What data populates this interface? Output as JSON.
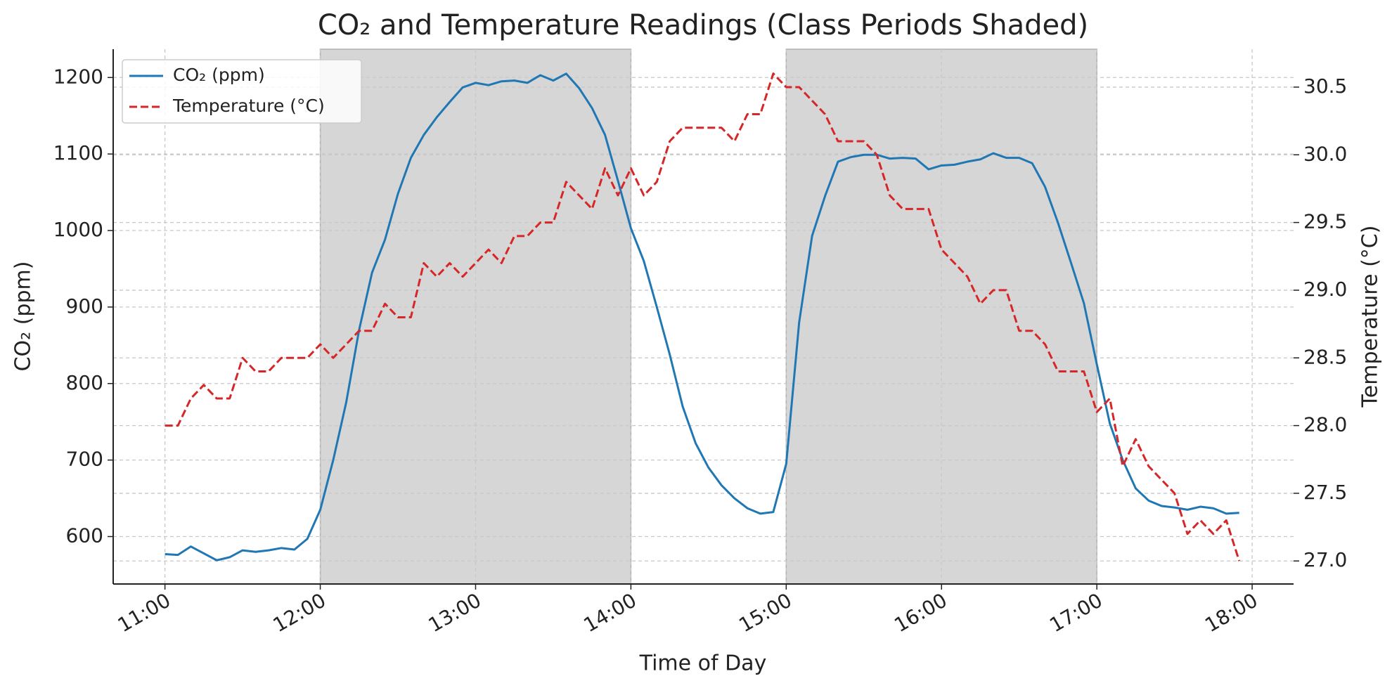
{
  "chart_data": {
    "type": "line",
    "title": "CO₂ and Temperature Readings (Class Periods Shaded)",
    "x_label": "Time of Day",
    "y_label": "CO₂ (ppm)",
    "y2_label": "Temperature (°C)",
    "x": [
      "11:00",
      "11:05",
      "11:10",
      "11:15",
      "11:20",
      "11:25",
      "11:30",
      "11:35",
      "11:40",
      "11:45",
      "11:50",
      "11:55",
      "12:00",
      "12:05",
      "12:10",
      "12:15",
      "12:20",
      "12:25",
      "12:30",
      "12:35",
      "12:40",
      "12:45",
      "12:50",
      "12:55",
      "13:00",
      "13:05",
      "13:10",
      "13:15",
      "13:20",
      "13:25",
      "13:30",
      "13:35",
      "13:40",
      "13:45",
      "13:50",
      "13:55",
      "14:00",
      "14:05",
      "14:10",
      "14:15",
      "14:20",
      "14:25",
      "14:30",
      "14:35",
      "14:40",
      "14:45",
      "14:50",
      "14:55",
      "15:00",
      "15:05",
      "15:10",
      "15:15",
      "15:20",
      "15:25",
      "15:30",
      "15:35",
      "15:40",
      "15:45",
      "15:50",
      "15:55",
      "16:00",
      "16:05",
      "16:10",
      "16:15",
      "16:20",
      "16:25",
      "16:30",
      "16:35",
      "16:40",
      "16:45",
      "16:50",
      "16:55",
      "17:00",
      "17:05",
      "17:10",
      "17:15",
      "17:20",
      "17:25",
      "17:30",
      "17:35",
      "17:40",
      "17:45",
      "17:50",
      "17:55"
    ],
    "series": [
      {
        "name": "CO₂ (ppm)",
        "color": "#1f77b4",
        "dash": "solid",
        "values": [
          577,
          576,
          587,
          578,
          569,
          573,
          582,
          580,
          582,
          585,
          583,
          597,
          635,
          700,
          775,
          870,
          945,
          988,
          1048,
          1095,
          1125,
          1148,
          1168,
          1187,
          1193,
          1190,
          1195,
          1196,
          1193,
          1203,
          1196,
          1205,
          1186,
          1160,
          1125,
          1065,
          1003,
          960,
          900,
          838,
          770,
          722,
          690,
          667,
          650,
          637,
          630,
          632,
          695,
          880,
          993,
          1045,
          1090,
          1096,
          1099,
          1099,
          1094,
          1095,
          1094,
          1080,
          1085,
          1086,
          1090,
          1093,
          1101,
          1095,
          1095,
          1088,
          1057,
          1010,
          958,
          905,
          825,
          748,
          700,
          663,
          647,
          640,
          638,
          635,
          639,
          637,
          630,
          631
        ]
      },
      {
        "name": "Temperature (°C)",
        "color": "#d62728",
        "dash": "dashed",
        "axis": "y2",
        "values": [
          28.0,
          28.0,
          28.2,
          28.3,
          28.2,
          28.2,
          28.5,
          28.4,
          28.4,
          28.5,
          28.5,
          28.5,
          28.6,
          28.5,
          28.6,
          28.7,
          28.7,
          28.9,
          28.8,
          28.8,
          29.2,
          29.1,
          29.2,
          29.1,
          29.2,
          29.3,
          29.2,
          29.4,
          29.4,
          29.5,
          29.5,
          29.8,
          29.7,
          29.6,
          29.9,
          29.7,
          29.9,
          29.7,
          29.8,
          30.1,
          30.2,
          30.2,
          30.2,
          30.2,
          30.1,
          30.3,
          30.3,
          30.6,
          30.5,
          30.5,
          30.4,
          30.3,
          30.1,
          30.1,
          30.1,
          30.0,
          29.7,
          29.6,
          29.6,
          29.6,
          29.3,
          29.2,
          29.1,
          28.9,
          29.0,
          29.0,
          28.7,
          28.7,
          28.6,
          28.4,
          28.4,
          28.4,
          28.1,
          28.2,
          27.7,
          27.9,
          27.7,
          27.6,
          27.5,
          27.2,
          27.3,
          27.2,
          27.3,
          27.0
        ]
      }
    ],
    "shaded": [
      [
        "12:00",
        "14:00"
      ],
      [
        "15:00",
        "17:00"
      ]
    ],
    "xlim": [
      "10:40",
      "18:16"
    ],
    "xticks": [
      "11:00",
      "12:00",
      "13:00",
      "14:00",
      "15:00",
      "16:00",
      "17:00",
      "18:00"
    ],
    "ylim": [
      538,
      1237
    ],
    "yticks": [
      600,
      700,
      800,
      900,
      1000,
      1100,
      1200
    ],
    "y2lim": [
      26.83,
      30.78
    ],
    "y2ticks": [
      {
        "value": 27,
        "label": "27.0"
      },
      27.5,
      {
        "value": 28,
        "label": "28.0"
      },
      28.5,
      {
        "value": 29,
        "label": "29.0"
      },
      29.5,
      {
        "value": 30,
        "label": "30.0"
      },
      30.5
    ],
    "grid": true,
    "legend": "upper left"
  }
}
